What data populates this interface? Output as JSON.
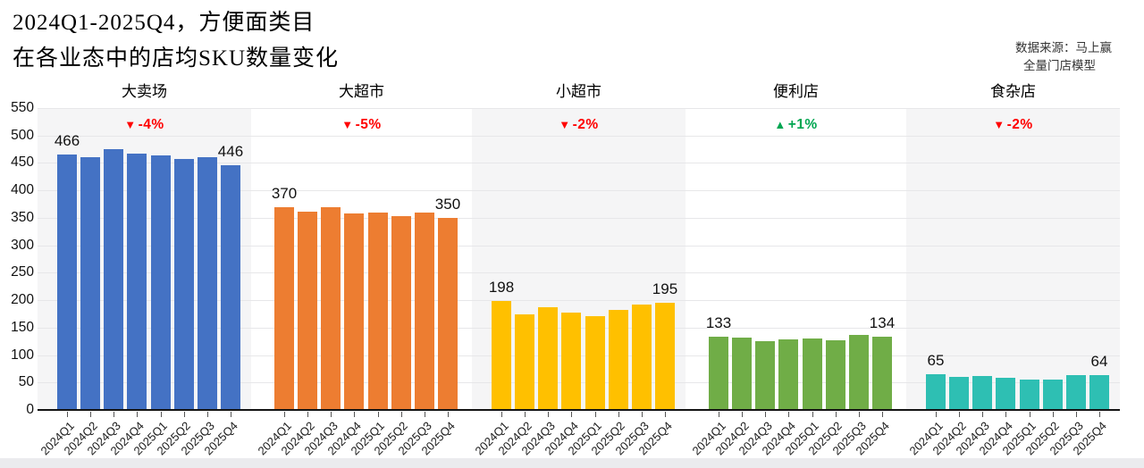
{
  "chart_data": {
    "type": "bar",
    "title_line1": "2024Q1-2025Q4，方便面类目",
    "title_line2": "在各业态中的店均SKU数量变化",
    "source_line1": "数据来源：马上赢",
    "source_line2": "全量门店模型",
    "categories": [
      "2024Q1",
      "2024Q2",
      "2024Q3",
      "2024Q4",
      "2025Q1",
      "2025Q2",
      "2025Q3",
      "2025Q4"
    ],
    "ylim": [
      0,
      550
    ],
    "ytick_step": 50,
    "yticks": [
      0,
      50,
      100,
      150,
      200,
      250,
      300,
      350,
      400,
      450,
      500,
      550
    ],
    "grid": true,
    "icons": {
      "down": "▼",
      "up": "▲"
    },
    "change_colors": {
      "down": "#FF0000",
      "up": "#00A651"
    },
    "panel_backgrounds": [
      "#f5f5f6",
      "#ffffff"
    ],
    "panels": [
      {
        "name": "大卖场",
        "color": "#4472C4",
        "direction": "down",
        "change": "-4%",
        "first_label": "466",
        "last_label": "446",
        "values": [
          466,
          460,
          475,
          467,
          463,
          458,
          460,
          446
        ]
      },
      {
        "name": "大超市",
        "color": "#ED7D31",
        "direction": "down",
        "change": "-5%",
        "first_label": "370",
        "last_label": "350",
        "values": [
          370,
          362,
          370,
          358,
          359,
          353,
          359,
          350
        ]
      },
      {
        "name": "小超市",
        "color": "#FFC000",
        "direction": "down",
        "change": "-2%",
        "first_label": "198",
        "last_label": "195",
        "values": [
          198,
          174,
          187,
          178,
          171,
          182,
          192,
          195
        ]
      },
      {
        "name": "便利店",
        "color": "#70AD47",
        "direction": "up",
        "change": "+1%",
        "first_label": "133",
        "last_label": "134",
        "values": [
          133,
          132,
          126,
          129,
          130,
          127,
          136,
          134
        ]
      },
      {
        "name": "食杂店",
        "color": "#2EBFB3",
        "direction": "down",
        "change": "-2%",
        "first_label": "65",
        "last_label": "64",
        "values": [
          65,
          61,
          62,
          58,
          55,
          56,
          63,
          64
        ]
      }
    ]
  }
}
